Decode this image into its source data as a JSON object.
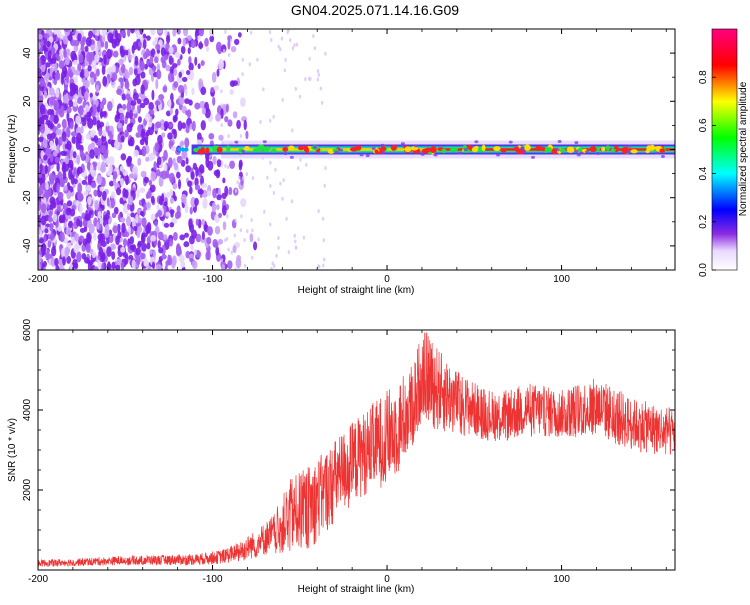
{
  "title": "GN04.2025.071.14.16.G09",
  "colors": {
    "snr_line": "#ee3333",
    "noise_purple": "#8a2be2",
    "signal_core": "#ff2020"
  },
  "chart_data": [
    {
      "type": "heatmap",
      "xlabel": "Height of straight line (km)",
      "ylabel": "Frequency (Hz)",
      "xlim": [
        -200,
        165
      ],
      "ylim": [
        -50,
        50
      ],
      "xticks": [
        -200,
        -100,
        0,
        100
      ],
      "yticks": [
        -40,
        -20,
        0,
        20,
        40
      ],
      "colorbar": {
        "label": "Normalized spectral amplitude",
        "range": [
          0,
          1
        ],
        "ticks": [
          "0.0",
          "0.2",
          "0.4",
          "0.6",
          "0.8"
        ]
      },
      "signal_band": {
        "x_start": -120,
        "x_end": 165,
        "frequency": 0
      },
      "noise_region": {
        "x_start": -200,
        "x_end": -90
      }
    },
    {
      "type": "line",
      "xlabel": "Height of straight line (km)",
      "ylabel": "SNR (10 * v/v)",
      "xlim": [
        -200,
        165
      ],
      "ylim": [
        0,
        6000
      ],
      "xticks": [
        -200,
        -100,
        0,
        100
      ],
      "yticks": [
        2000,
        4000,
        6000
      ],
      "envelope": {
        "x": [
          -200,
          -150,
          -110,
          -95,
          -85,
          -75,
          -65,
          -55,
          -45,
          -35,
          -25,
          -15,
          -5,
          5,
          15,
          20,
          25,
          30,
          40,
          50,
          60,
          70,
          80,
          90,
          100,
          110,
          120,
          130,
          140,
          150,
          160,
          165
        ],
        "low": [
          80,
          120,
          120,
          150,
          200,
          300,
          400,
          400,
          500,
          900,
          1400,
          1800,
          2000,
          2300,
          3000,
          3800,
          3600,
          3400,
          3400,
          3300,
          3200,
          3200,
          3300,
          3300,
          3300,
          3300,
          3400,
          3100,
          3000,
          2900,
          2800,
          2800
        ],
        "high": [
          250,
          350,
          400,
          500,
          700,
          1000,
          1400,
          2300,
          2600,
          3000,
          3500,
          3900,
          4300,
          4700,
          5200,
          6000,
          5900,
          5500,
          5000,
          4700,
          4500,
          4500,
          4700,
          4600,
          4500,
          4700,
          4800,
          4600,
          4300,
          4200,
          4100,
          4000
        ]
      }
    }
  ]
}
